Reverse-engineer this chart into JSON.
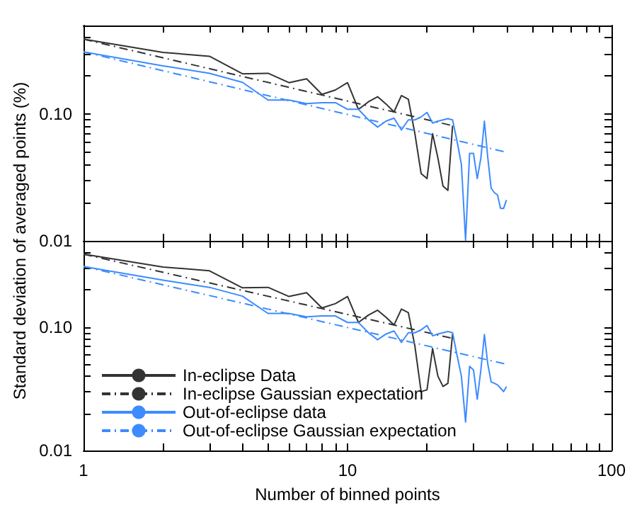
{
  "chart_data": [
    {
      "type": "line",
      "log": "xy",
      "tick_labels": "y",
      "legend": false,
      "marker": "none",
      "grid": false,
      "ylabel": "Standard deviation of averaged points (%)",
      "xlim": [
        1,
        100
      ],
      "xticks": [
        1,
        {
          "value": 2,
          "label": null
        },
        {
          "value": 3,
          "label": null
        },
        {
          "value": 4,
          "label": null
        },
        {
          "value": 5,
          "label": null
        },
        {
          "value": 6,
          "label": null
        },
        {
          "value": 7,
          "label": null
        },
        {
          "value": 8,
          "label": null
        },
        {
          "value": 9,
          "label": null
        },
        10,
        {
          "value": 20,
          "label": null
        },
        {
          "value": 30,
          "label": null
        },
        {
          "value": 40,
          "label": null
        },
        {
          "value": 50,
          "label": null
        },
        {
          "value": 60,
          "label": null
        },
        {
          "value": 70,
          "label": null
        },
        {
          "value": 80,
          "label": null
        },
        {
          "value": 90,
          "label": null
        },
        100
      ],
      "ylim": [
        0.01,
        0.5
      ],
      "yticks": [
        0.01,
        {
          "value": 0.02,
          "label": null
        },
        {
          "value": 0.03,
          "label": null
        },
        {
          "value": 0.04,
          "label": null
        },
        {
          "value": 0.05,
          "label": null
        },
        {
          "value": 0.06,
          "label": null
        },
        {
          "value": 0.07,
          "label": null
        },
        {
          "value": 0.08,
          "label": null
        },
        {
          "value": 0.09,
          "label": null
        },
        {
          "value": 0.1,
          "label": "0.10"
        },
        {
          "value": 0.2,
          "label": null
        },
        {
          "value": 0.3,
          "label": null
        },
        {
          "value": 0.4,
          "label": null
        },
        {
          "value": 0.5,
          "label": null
        }
      ],
      "series": [
        {
          "color": "#333333",
          "line_style": "solid",
          "x": [
            1,
            2,
            3,
            4,
            5,
            6,
            7,
            8,
            9,
            10,
            11,
            12,
            13,
            14,
            15,
            16,
            17,
            18,
            19,
            20,
            21,
            22,
            23,
            24,
            25
          ],
          "values": [
            0.39,
            0.307,
            0.286,
            0.208,
            0.21,
            0.177,
            0.19,
            0.143,
            0.155,
            0.177,
            0.109,
            0.125,
            0.137,
            0.12,
            0.104,
            0.14,
            0.131,
            0.07,
            0.034,
            0.031,
            0.07,
            0.045,
            0.027,
            0.025,
            0.081
          ]
        },
        {
          "color": "#333333",
          "line_style": "dashed",
          "x": [
            1,
            25
          ],
          "values": [
            0.39,
            0.081
          ]
        },
        {
          "color": "#3d8bff",
          "line_style": "solid",
          "x": [
            1,
            2,
            3,
            4,
            5,
            6,
            7,
            8,
            9,
            10,
            11,
            12,
            13,
            14,
            15,
            16,
            17,
            18,
            19,
            20,
            21,
            22,
            23,
            24,
            25,
            26,
            27,
            28,
            29,
            30,
            31,
            32,
            33,
            34,
            35,
            36,
            37,
            38,
            39,
            40
          ],
          "values": [
            0.31,
            0.24,
            0.21,
            0.178,
            0.129,
            0.129,
            0.121,
            0.123,
            0.123,
            0.109,
            0.109,
            0.09,
            0.079,
            0.088,
            0.093,
            0.075,
            0.09,
            0.09,
            0.095,
            0.103,
            0.085,
            0.088,
            0.09,
            0.092,
            0.09,
            0.061,
            0.04,
            0.0101,
            0.049,
            0.049,
            0.031,
            0.045,
            0.088,
            0.045,
            0.026,
            0.024,
            0.023,
            0.018,
            0.018,
            0.021
          ]
        },
        {
          "color": "#3d8bff",
          "line_style": "dashed",
          "x": [
            1,
            40
          ],
          "values": [
            0.31,
            0.05
          ]
        }
      ]
    },
    {
      "type": "line",
      "log": "xy",
      "legend": "bottom left",
      "marker": "none",
      "grid": false,
      "xlabel": "Number of binned points",
      "xlim": [
        1,
        100
      ],
      "xticks": [
        1,
        {
          "value": 2,
          "label": null
        },
        {
          "value": 3,
          "label": null
        },
        {
          "value": 4,
          "label": null
        },
        {
          "value": 5,
          "label": null
        },
        {
          "value": 6,
          "label": null
        },
        {
          "value": 7,
          "label": null
        },
        {
          "value": 8,
          "label": null
        },
        {
          "value": 9,
          "label": null
        },
        10,
        {
          "value": 20,
          "label": null
        },
        {
          "value": 30,
          "label": null
        },
        {
          "value": 40,
          "label": null
        },
        {
          "value": 50,
          "label": null
        },
        {
          "value": 60,
          "label": null
        },
        {
          "value": 70,
          "label": null
        },
        {
          "value": 80,
          "label": null
        },
        {
          "value": 90,
          "label": null
        },
        100
      ],
      "ylim": [
        0.01,
        0.5
      ],
      "yticks": [
        0.01,
        {
          "value": 0.02,
          "label": null
        },
        {
          "value": 0.03,
          "label": null
        },
        {
          "value": 0.04,
          "label": null
        },
        {
          "value": 0.05,
          "label": null
        },
        {
          "value": 0.06,
          "label": null
        },
        {
          "value": 0.07,
          "label": null
        },
        {
          "value": 0.08,
          "label": null
        },
        {
          "value": 0.09,
          "label": null
        },
        {
          "value": 0.1,
          "label": "0.10"
        },
        {
          "value": 0.2,
          "label": null
        },
        {
          "value": 0.3,
          "label": null
        },
        {
          "value": 0.4,
          "label": null
        },
        {
          "value": 0.5,
          "label": null
        }
      ],
      "series": [
        {
          "name": "In-eclipse Data",
          "color": "#333333",
          "line_style": "solid",
          "x": [
            1,
            2,
            3,
            4,
            5,
            6,
            7,
            8,
            9,
            10,
            11,
            12,
            13,
            14,
            15,
            16,
            17,
            18,
            19,
            20,
            21,
            22,
            23,
            24,
            25
          ],
          "values": [
            0.39,
            0.307,
            0.286,
            0.208,
            0.21,
            0.177,
            0.19,
            0.143,
            0.155,
            0.177,
            0.109,
            0.125,
            0.137,
            0.12,
            0.104,
            0.14,
            0.131,
            0.07,
            0.03,
            0.031,
            0.067,
            0.04,
            0.033,
            0.035,
            0.088
          ]
        },
        {
          "name": "In-eclipse Gaussian expectation",
          "color": "#333333",
          "line_style": "dashed",
          "x": [
            1,
            25
          ],
          "values": [
            0.39,
            0.081
          ]
        },
        {
          "name": "Out-of-eclipse data",
          "color": "#3d8bff",
          "line_style": "solid",
          "x": [
            1,
            2,
            3,
            4,
            5,
            6,
            7,
            8,
            9,
            10,
            11,
            12,
            13,
            14,
            15,
            16,
            17,
            18,
            19,
            20,
            21,
            22,
            23,
            24,
            25,
            26,
            27,
            28,
            29,
            30,
            31,
            32,
            33,
            34,
            35,
            36,
            37,
            38,
            39,
            40
          ],
          "values": [
            0.31,
            0.24,
            0.21,
            0.178,
            0.129,
            0.129,
            0.121,
            0.123,
            0.123,
            0.109,
            0.109,
            0.09,
            0.079,
            0.088,
            0.093,
            0.075,
            0.09,
            0.09,
            0.095,
            0.103,
            0.085,
            0.088,
            0.09,
            0.092,
            0.09,
            0.059,
            0.04,
            0.017,
            0.048,
            0.045,
            0.026,
            0.045,
            0.087,
            0.05,
            0.036,
            0.035,
            0.034,
            0.032,
            0.03,
            0.033
          ]
        },
        {
          "name": "Out-of-eclipse Gaussian expectation",
          "color": "#3d8bff",
          "line_style": "dashed",
          "x": [
            1,
            40
          ],
          "values": [
            0.31,
            0.05
          ]
        }
      ]
    }
  ]
}
